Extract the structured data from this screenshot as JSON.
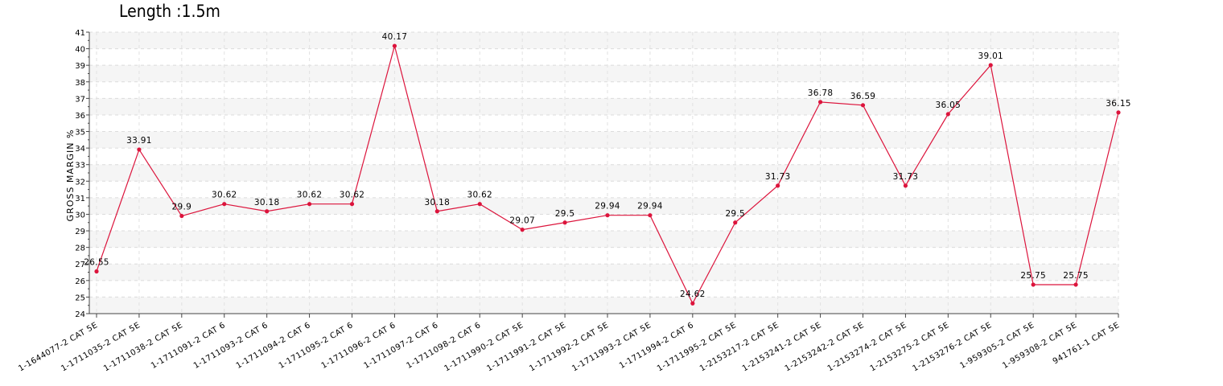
{
  "chart_data": {
    "type": "line",
    "title": "Length :1.5m",
    "xlabel": "",
    "ylabel": "GROSS MARGIN %",
    "ylim": [
      24,
      41
    ],
    "grid": true,
    "categories": [
      "1-1644077-2 CAT 5E",
      "1-1711035-2 CAT 5E",
      "1-1711038-2 CAT 5E",
      "1-1711091-2 CAT 6",
      "1-1711093-2 CAT 6",
      "1-1711094-2 CAT 6",
      "1-1711095-2 CAT 6",
      "1-1711096-2 CAT 6",
      "1-1711097-2 CAT 6",
      "1-1711098-2 CAT 6",
      "1-1711990-2 CAT 5E",
      "1-1711991-2 CAT 5E",
      "1-1711992-2 CAT 5E",
      "1-1711993-2 CAT 5E",
      "1-1711994-2 CAT 6",
      "1-1711995-2 CAT 5E",
      "1-2153217-2 CAT 5E",
      "1-2153241-2 CAT 5E",
      "1-2153242-2 CAT 5E",
      "1-2153274-2 CAT 5E",
      "1-2153275-2 CAT 5E",
      "1-2153276-2 CAT 5E",
      "1-959305-2 CAT 5E",
      "1-959308-2 CAT 5E",
      "941761-1 CAT 5E"
    ],
    "series": [
      {
        "values": [
          26.55,
          33.91,
          29.9,
          30.62,
          30.18,
          30.62,
          30.62,
          40.17,
          30.18,
          30.62,
          29.07,
          29.5,
          29.94,
          29.94,
          24.62,
          29.5,
          31.73,
          36.78,
          36.59,
          31.73,
          36.05,
          39.01,
          25.75,
          25.75,
          36.15
        ],
        "labels": [
          "26.55",
          "33.91",
          "29.9",
          "30.62",
          "30.18",
          "30.62",
          "30.62",
          "40.17",
          "30.18",
          "30.62",
          "29.07",
          "29.5",
          "29.94",
          "29.94",
          "24.62",
          "29.5",
          "31.73",
          "36.78",
          "36.59",
          "31.73",
          "36.05",
          "39.01",
          "25.75",
          "25.75",
          "36.15"
        ],
        "color": "#dc143c"
      }
    ],
    "yticks": [
      "24",
      "25",
      "26",
      "27",
      "28",
      "29",
      "30",
      "31",
      "32",
      "33",
      "34",
      "35",
      "36",
      "37",
      "38",
      "39",
      "40",
      "41"
    ]
  }
}
